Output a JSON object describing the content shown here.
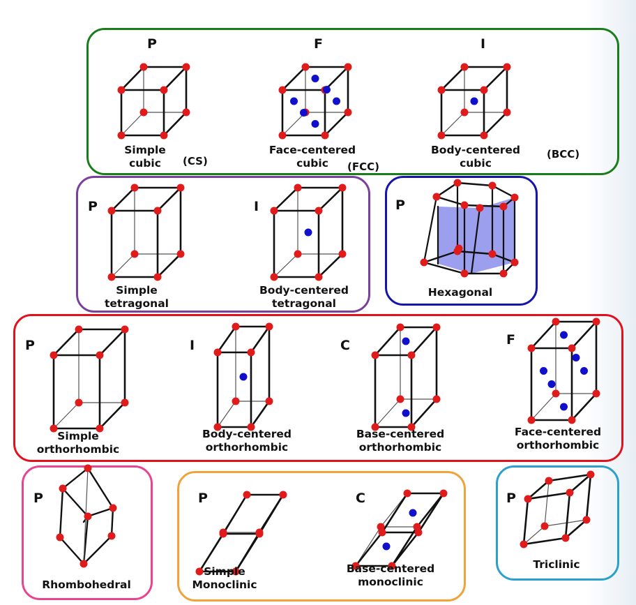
{
  "colors": {
    "cubic": "#1a7d1a",
    "tetragonal": "#7b3f9e",
    "hexagonal": "#1515a8",
    "orthorhombic": "#e3111c",
    "rhombohedral": "#e8448f",
    "monoclinic": "#f2a23a",
    "triclinic": "#2aa0cc",
    "lattice_point": "#e01b1b",
    "center_point": "#1010cc",
    "hex_fill": "#7b7fe8",
    "edge": "#111111"
  },
  "groups": {
    "cubic": {
      "lattices": [
        {
          "letter": "P",
          "name_line1": "Simple",
          "name_line2": "cubic",
          "abbr": "(CS)"
        },
        {
          "letter": "F",
          "name_line1": "Face-centered",
          "name_line2": "cubic",
          "abbr": "(FCC)"
        },
        {
          "letter": "I",
          "name_line1": "Body-centered",
          "name_line2": "cubic",
          "abbr": "(BCC)"
        }
      ]
    },
    "tetragonal": {
      "lattices": [
        {
          "letter": "P",
          "name_line1": "Simple",
          "name_line2": "tetragonal"
        },
        {
          "letter": "I",
          "name_line1": "Body-centered",
          "name_line2": "tetragonal"
        }
      ]
    },
    "hexagonal": {
      "lattices": [
        {
          "letter": "P",
          "name_line1": "Hexagonal"
        }
      ]
    },
    "orthorhombic": {
      "lattices": [
        {
          "letter": "P",
          "name_line1": "Simple",
          "name_line2": "orthorhombic"
        },
        {
          "letter": "I",
          "name_line1": "Body-centered",
          "name_line2": "orthorhombic"
        },
        {
          "letter": "C",
          "name_line1": "Base-centered",
          "name_line2": "orthorhombic"
        },
        {
          "letter": "F",
          "name_line1": "Face-centered",
          "name_line2": "orthorhombic"
        }
      ]
    },
    "rhombohedral": {
      "lattices": [
        {
          "letter": "P",
          "name_line1": "Rhombohedral"
        }
      ]
    },
    "monoclinic": {
      "lattices": [
        {
          "letter": "P",
          "name_line1": "Simple",
          "name_line2": "Monoclinic"
        },
        {
          "letter": "C",
          "name_line1": "Base-centered",
          "name_line2": "monoclinic"
        }
      ]
    },
    "triclinic": {
      "lattices": [
        {
          "letter": "P",
          "name_line1": "Triclinic"
        }
      ]
    }
  }
}
